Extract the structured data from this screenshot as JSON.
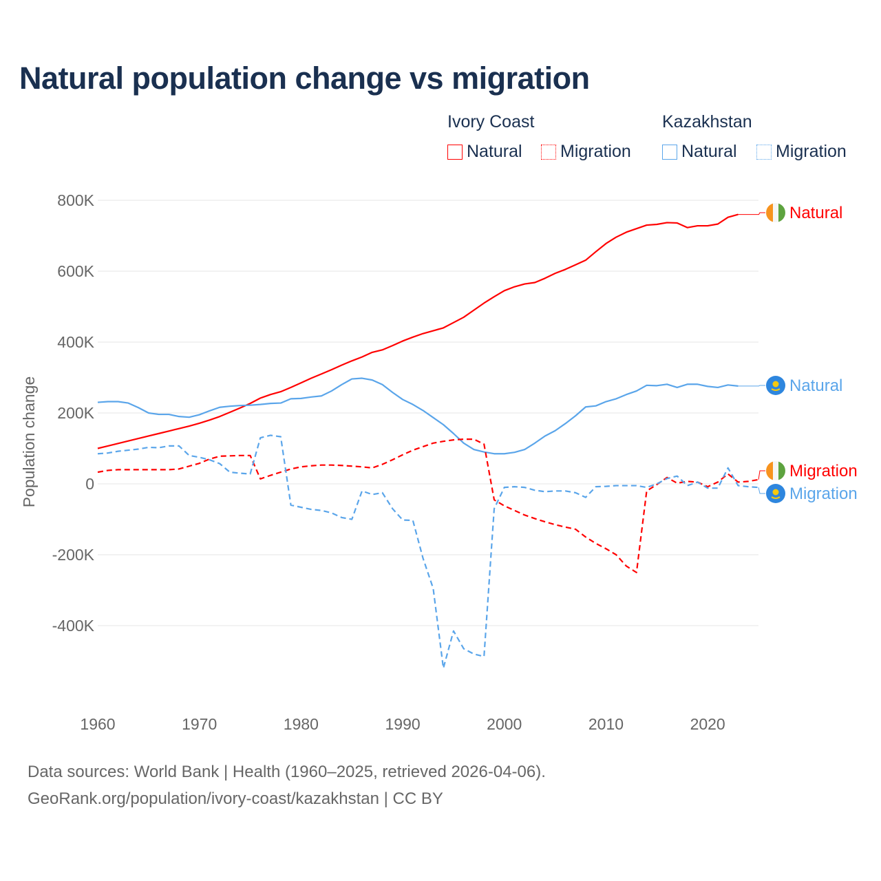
{
  "title": "Natural population change vs migration",
  "legend": {
    "groups": [
      {
        "name": "Ivory Coast",
        "items": [
          "Natural",
          "Migration"
        ],
        "color": "#ff0000"
      },
      {
        "name": "Kazakhstan",
        "items": [
          "Natural",
          "Migration"
        ],
        "color": "#5aa5ea"
      }
    ]
  },
  "footer": {
    "line1": "Data sources: World Bank | Health (1960–2025, retrieved 2026-04-06).",
    "line2": "GeoRank.org/population/ivory-coast/kazakhstan | CC BY"
  },
  "chart_data": {
    "type": "line",
    "title": "Natural population change vs migration",
    "xlabel": "",
    "ylabel": "Population change",
    "xlim": [
      1960,
      2025
    ],
    "ylim": [
      -520000,
      800000
    ],
    "x_ticks": [
      "1960",
      "1970",
      "1980",
      "1990",
      "2000",
      "2010",
      "2020"
    ],
    "y_ticks": [
      {
        "value": 800000,
        "label": "800K"
      },
      {
        "value": 600000,
        "label": "600K"
      },
      {
        "value": 400000,
        "label": "400K"
      },
      {
        "value": 200000,
        "label": "200K"
      },
      {
        "value": 0,
        "label": "0"
      },
      {
        "value": -200000,
        "label": "-200K"
      },
      {
        "value": -400000,
        "label": "-400K"
      }
    ],
    "grid": true,
    "start_year": 1960,
    "unit": "thousands",
    "series": [
      {
        "name": "Ivory Coast Natural",
        "end_label": "Natural",
        "country": "Ivory Coast",
        "color": "#ff0000",
        "dash": false,
        "values": [
          100,
          107,
          114,
          121,
          128,
          135,
          142,
          149,
          156,
          163,
          171,
          180,
          190,
          202,
          214,
          227,
          242,
          252,
          260,
          272,
          285,
          298,
          310,
          322,
          335,
          347,
          358,
          371,
          378,
          390,
          403,
          414,
          424,
          432,
          440,
          455,
          470,
          490,
          510,
          528,
          545,
          556,
          564,
          568,
          580,
          594,
          605,
          618,
          631,
          655,
          678,
          696,
          710,
          720,
          730,
          732,
          737,
          736,
          723,
          728,
          728,
          733,
          752,
          760
        ]
      },
      {
        "name": "Kazakhstan Natural",
        "end_label": "Natural",
        "country": "Kazakhstan",
        "color": "#5aa5ea",
        "dash": false,
        "values": [
          230,
          232,
          232,
          228,
          215,
          200,
          196,
          196,
          190,
          188,
          195,
          206,
          216,
          219,
          221,
          222,
          224,
          227,
          228,
          240,
          241,
          245,
          248,
          262,
          280,
          296,
          298,
          293,
          280,
          258,
          238,
          224,
          207,
          187,
          167,
          142,
          115,
          97,
          90,
          85,
          85,
          89,
          97,
          115,
          135,
          150,
          170,
          192,
          217,
          220,
          232,
          240,
          252,
          262,
          278,
          277,
          281,
          272,
          281,
          281,
          275,
          272,
          279,
          276
        ]
      },
      {
        "name": "Ivory Coast Migration",
        "end_label": "Migration",
        "country": "Ivory Coast",
        "color": "#ff0000",
        "dash": true,
        "values": [
          33,
          38,
          40,
          40,
          40,
          40,
          40,
          40,
          42,
          50,
          58,
          70,
          78,
          79,
          80,
          80,
          14,
          24,
          33,
          42,
          48,
          51,
          53,
          53,
          52,
          50,
          48,
          45,
          55,
          68,
          82,
          95,
          105,
          115,
          120,
          124,
          126,
          126,
          112,
          -45,
          -62,
          -75,
          -88,
          -98,
          -107,
          -115,
          -122,
          -128,
          -150,
          -168,
          -183,
          -200,
          -232,
          -250,
          -20,
          -2,
          18,
          2,
          7,
          5,
          -8,
          5,
          28,
          5,
          7,
          12
        ]
      },
      {
        "name": "Kazakhstan Migration",
        "end_label": "Migration",
        "country": "Kazakhstan",
        "color": "#5aa5ea",
        "dash": true,
        "values": [
          85,
          87,
          92,
          95,
          98,
          103,
          102,
          107,
          107,
          80,
          75,
          68,
          57,
          33,
          30,
          28,
          130,
          137,
          133,
          -60,
          -66,
          -72,
          -75,
          -82,
          -95,
          -100,
          -20,
          -30,
          -25,
          -70,
          -102,
          -103,
          -210,
          -295,
          -520,
          -415,
          -465,
          -480,
          -487,
          -70,
          -10,
          -8,
          -10,
          -18,
          -22,
          -20,
          -20,
          -25,
          -38,
          -8,
          -7,
          -5,
          -5,
          -5,
          -10,
          0,
          15,
          22,
          -5,
          5,
          -12,
          -12,
          45,
          -5,
          -8,
          -10
        ]
      }
    ]
  }
}
